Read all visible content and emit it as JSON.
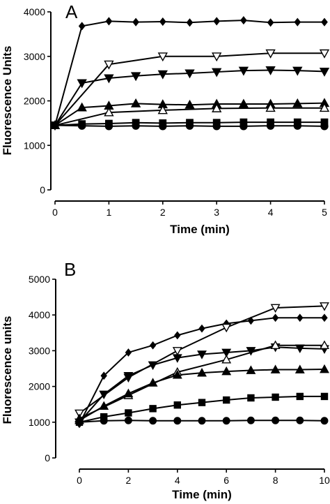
{
  "chart_data": [
    {
      "type": "line",
      "panel_label": "A",
      "xlabel": "Time (min)",
      "ylabel": "Fluorescence Units",
      "xlim": [
        0,
        5
      ],
      "ylim": [
        0,
        4000
      ],
      "x_ticks": [
        0,
        1,
        2,
        3,
        4,
        5
      ],
      "y_ticks": [
        0,
        1000,
        2000,
        3000,
        4000
      ],
      "grid": false,
      "series": [
        {
          "marker": "diamond-filled",
          "x": [
            0,
            0.5,
            1,
            1.5,
            2,
            2.5,
            3,
            3.5,
            4,
            4.5,
            5
          ],
          "y": [
            1450,
            3680,
            3790,
            3770,
            3780,
            3760,
            3790,
            3810,
            3760,
            3770,
            3770
          ]
        },
        {
          "marker": "triangle-down-open",
          "x": [
            0,
            1,
            2,
            3,
            4,
            5
          ],
          "y": [
            1450,
            2820,
            3000,
            3000,
            3070,
            3070
          ]
        },
        {
          "marker": "triangle-down-filled",
          "x": [
            0,
            0.5,
            1,
            1.5,
            2,
            2.5,
            3,
            3.5,
            4,
            4.5,
            5
          ],
          "y": [
            1450,
            2400,
            2510,
            2560,
            2600,
            2620,
            2650,
            2680,
            2690,
            2680,
            2660
          ]
        },
        {
          "marker": "triangle-up-filled",
          "x": [
            0,
            0.5,
            1,
            1.5,
            2,
            2.5,
            3,
            3.5,
            4,
            4.5,
            5
          ],
          "y": [
            1450,
            1850,
            1890,
            1940,
            1920,
            1910,
            1930,
            1930,
            1930,
            1940,
            1950
          ]
        },
        {
          "marker": "triangle-up-open",
          "x": [
            0,
            1,
            2,
            3,
            4,
            5
          ],
          "y": [
            1450,
            1740,
            1790,
            1830,
            1840,
            1840
          ]
        },
        {
          "marker": "square-filled",
          "x": [
            0,
            0.5,
            1,
            1.5,
            2,
            2.5,
            3,
            3.5,
            4,
            4.5,
            5
          ],
          "y": [
            1450,
            1480,
            1490,
            1510,
            1500,
            1510,
            1510,
            1520,
            1520,
            1520,
            1520
          ]
        },
        {
          "marker": "circle-filled",
          "x": [
            0,
            0.5,
            1,
            1.5,
            2,
            2.5,
            3,
            3.5,
            4,
            4.5,
            5
          ],
          "y": [
            1450,
            1440,
            1430,
            1440,
            1430,
            1440,
            1430,
            1430,
            1440,
            1440,
            1430
          ]
        }
      ]
    },
    {
      "type": "line",
      "panel_label": "B",
      "xlabel": "Time (min)",
      "ylabel": "Fluorescence units",
      "xlim": [
        0,
        10
      ],
      "ylim": [
        0,
        5000
      ],
      "x_ticks": [
        0,
        2,
        4,
        6,
        8,
        10
      ],
      "y_ticks": [
        0,
        1000,
        2000,
        3000,
        4000,
        5000
      ],
      "grid": false,
      "series": [
        {
          "marker": "diamond-filled",
          "x": [
            0,
            1,
            2,
            3,
            4,
            5,
            6,
            7,
            8,
            9,
            10
          ],
          "y": [
            950,
            2300,
            2950,
            3150,
            3430,
            3620,
            3760,
            3840,
            3920,
            3920,
            3920
          ]
        },
        {
          "marker": "triangle-down-open",
          "x": [
            0,
            2,
            4,
            6,
            8,
            10
          ],
          "y": [
            1250,
            2250,
            3000,
            3650,
            4200,
            4250
          ]
        },
        {
          "marker": "triangle-down-filled",
          "x": [
            0,
            1,
            2,
            3,
            4,
            5,
            6,
            7,
            8,
            9,
            10
          ],
          "y": [
            1000,
            1780,
            2300,
            2600,
            2800,
            2900,
            2950,
            3000,
            3100,
            3070,
            3050
          ]
        },
        {
          "marker": "triangle-up-open",
          "x": [
            0,
            2,
            4,
            6,
            8,
            10
          ],
          "y": [
            1100,
            1750,
            2400,
            2750,
            3150,
            3150
          ]
        },
        {
          "marker": "triangle-up-filled",
          "x": [
            0,
            1,
            2,
            3,
            4,
            5,
            6,
            7,
            8,
            9,
            10
          ],
          "y": [
            1050,
            1450,
            1800,
            2100,
            2320,
            2380,
            2420,
            2450,
            2470,
            2470,
            2480
          ]
        },
        {
          "marker": "square-filled",
          "x": [
            0,
            1,
            2,
            3,
            4,
            5,
            6,
            7,
            8,
            9,
            10
          ],
          "y": [
            1000,
            1150,
            1260,
            1380,
            1480,
            1550,
            1620,
            1680,
            1700,
            1720,
            1720
          ]
        },
        {
          "marker": "circle-filled",
          "x": [
            0,
            1,
            2,
            3,
            4,
            5,
            6,
            7,
            8,
            9,
            10
          ],
          "y": [
            1000,
            1040,
            1050,
            1040,
            1040,
            1040,
            1040,
            1050,
            1050,
            1050,
            1040
          ]
        }
      ]
    }
  ]
}
